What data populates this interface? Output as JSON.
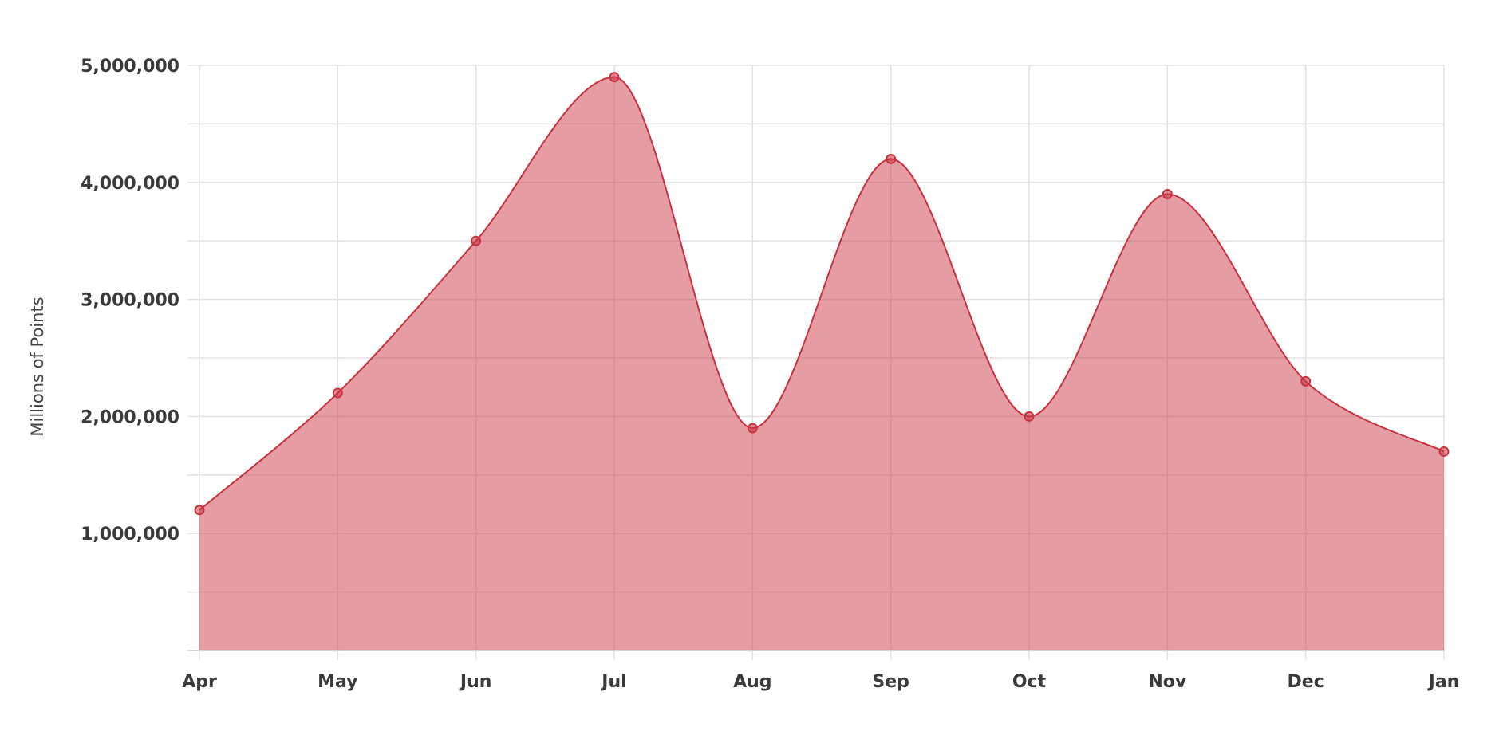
{
  "chart_data": {
    "type": "area",
    "title": "",
    "xlabel": "",
    "ylabel": "Millions of Points",
    "categories": [
      "Apr",
      "May",
      "Jun",
      "Jul",
      "Aug",
      "Sep",
      "Oct",
      "Nov",
      "Dec",
      "Jan"
    ],
    "series": [
      {
        "values": [
          1200000,
          2200000,
          3500000,
          4900000,
          1900000,
          4200000,
          2000000,
          3900000,
          2300000,
          1700000
        ]
      }
    ],
    "ylim": [
      0,
      5000000
    ],
    "y_ticks": [
      1000000,
      2000000,
      3000000,
      4000000,
      5000000
    ],
    "y_tick_labels": [
      "1,000,000",
      "2,000,000",
      "3,000,000",
      "4,000,000",
      "5,000,000"
    ],
    "y_minor_step": 500000,
    "grid": true,
    "smooth": true,
    "colors": {
      "line": "#c8323f",
      "fill": "#c8323f",
      "fill_opacity": 0.48,
      "grid": "#e2e2e2",
      "text": "#3a3a3a"
    }
  }
}
